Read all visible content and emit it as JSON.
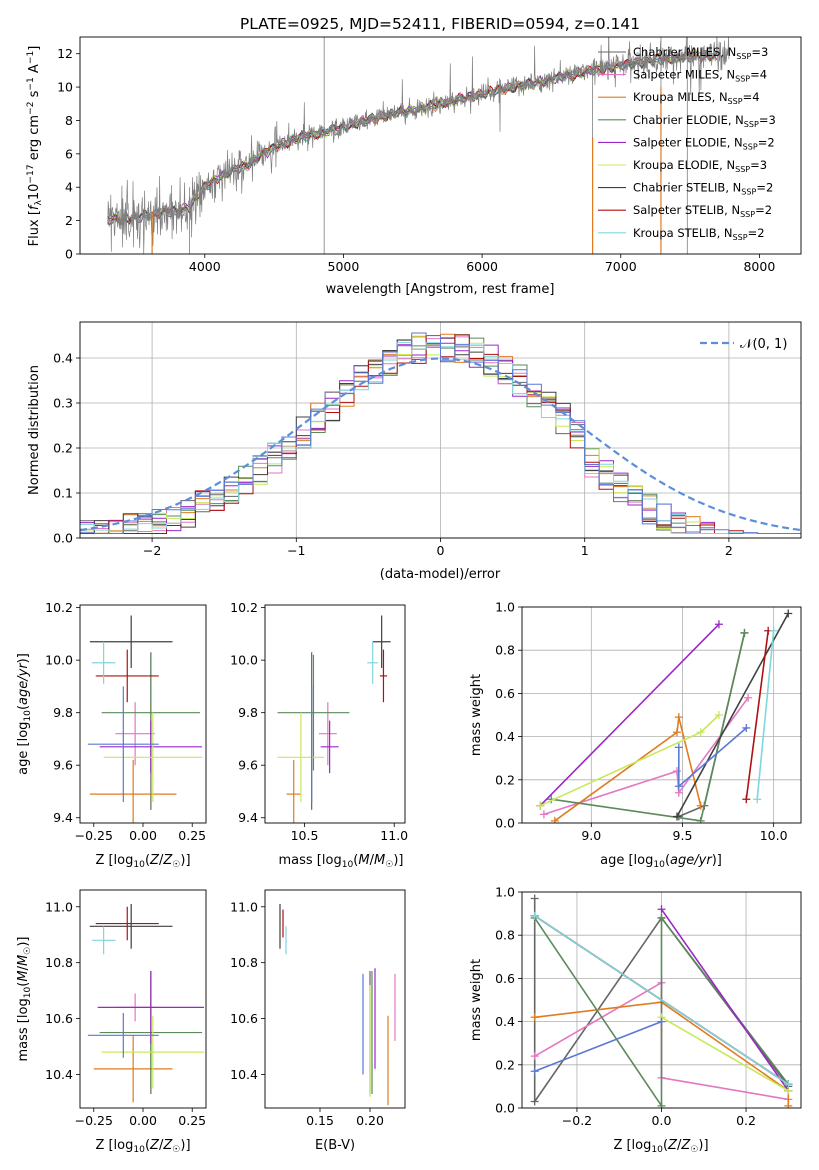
{
  "title": "PLATE=0925, MJD=52411, FIBERID=0594, z=0.141",
  "colors": {
    "Chabrier MILES": "#666666",
    "Salpeter MILES": "#e377c2",
    "Kroupa MILES": "#e07b20",
    "Chabrier ELODIE": "#5a8a5a",
    "Salpeter ELODIE": "#9b27c7",
    "Kroupa ELODIE": "#c8e85a",
    "Chabrier STELIB": "#404040",
    "Salpeter STELIB": "#b01010",
    "Kroupa STELIB": "#7fd6de",
    "blue": "#5a78d6",
    "normal": "#5b8fd9"
  },
  "legend1": [
    {
      "pre": "Chabrier MILES, N",
      "sub": "SSP",
      "post": "=3",
      "color": "#666666"
    },
    {
      "pre": "Salpeter MILES, N",
      "sub": "SSP",
      "post": "=4",
      "color": "#e377c2"
    },
    {
      "pre": "Kroupa MILES, N",
      "sub": "SSP",
      "post": "=4",
      "color": "#e07b20"
    },
    {
      "pre": "Chabrier ELODIE, N",
      "sub": "SSP",
      "post": "=3",
      "color": "#5a8a5a"
    },
    {
      "pre": "Salpeter ELODIE, N",
      "sub": "SSP",
      "post": "=2",
      "color": "#9b27c7"
    },
    {
      "pre": "Kroupa ELODIE, N",
      "sub": "SSP",
      "post": "=3",
      "color": "#c8e85a"
    },
    {
      "pre": "Chabrier STELIB, N",
      "sub": "SSP",
      "post": "=2",
      "color": "#404040"
    },
    {
      "pre": "Salpeter STELIB, N",
      "sub": "SSP",
      "post": "=2",
      "color": "#b01010"
    },
    {
      "pre": "Kroupa STELIB, N",
      "sub": "SSP",
      "post": "=2",
      "color": "#7fd6de"
    }
  ],
  "legend2": "𝒩(0, 1)",
  "chart_data": [
    {
      "type": "line",
      "title": "PLATE=0925, MJD=52411, FIBERID=0594, z=0.141",
      "xlabel": "wavelength [Angstrom, rest frame]",
      "ylabel": "Flux [fλ10⁻¹⁷ erg cm⁻² s⁻¹ A⁻¹]",
      "xlim": [
        3100,
        8300
      ],
      "ylim": [
        0,
        13
      ],
      "xticks": [
        4000,
        5000,
        6000,
        7000,
        8000
      ],
      "yticks": [
        0,
        2,
        4,
        6,
        8,
        10,
        12
      ],
      "continuum": {
        "x": [
          3300,
          3400,
          3500,
          3600,
          3700,
          3800,
          3900,
          4000,
          4100,
          4200,
          4300,
          4400,
          4500,
          4700,
          5000,
          5300,
          5600,
          6000,
          6400,
          6800,
          7200,
          7600,
          7700
        ],
        "y": [
          2.0,
          2.1,
          2.2,
          2.3,
          2.6,
          2.5,
          2.9,
          4.0,
          4.6,
          5.0,
          5.3,
          5.9,
          6.4,
          7.0,
          7.6,
          8.3,
          8.8,
          9.6,
          10.3,
          11.0,
          11.6,
          11.9,
          11.8
        ]
      }
    },
    {
      "type": "histogram",
      "xlabel": "(data-model)/error",
      "ylabel": "Normed distribution",
      "xlim": [
        -2.5,
        2.5
      ],
      "ylim": [
        0,
        0.48
      ],
      "xticks": [
        -2,
        -1,
        0,
        1,
        2
      ],
      "yticks": [
        0.0,
        0.1,
        0.2,
        0.3,
        0.4
      ],
      "reference": {
        "name": "𝒩(0, 1)",
        "mu": 0,
        "sigma": 1
      }
    },
    {
      "type": "scatter",
      "xlabel": "Z [log10(Z/Z☉)]",
      "ylabel": "age  [log10(age/yr)]",
      "xlim": [
        -0.32,
        0.32
      ],
      "ylim": [
        9.38,
        10.21
      ],
      "xticks": [
        -0.25,
        0.0,
        0.25
      ],
      "yticks": [
        9.4,
        9.6,
        9.8,
        10.0,
        10.2
      ],
      "points": [
        {
          "series": "Chabrier MILES",
          "x": 0.04,
          "y": 9.73,
          "xerr": 0.0,
          "yerr": 0.3
        },
        {
          "series": "Salpeter MILES",
          "x": -0.04,
          "y": 9.72,
          "xerr": 0.1,
          "yerr": 0.12
        },
        {
          "series": "Kroupa MILES",
          "x": -0.05,
          "y": 9.49,
          "xerr": 0.22,
          "yerr": 0.13
        },
        {
          "series": "Chabrier ELODIE",
          "x": 0.04,
          "y": 9.8,
          "xerr": 0.25,
          "yerr": 0.22
        },
        {
          "series": "Salpeter ELODIE",
          "x": 0.04,
          "y": 9.67,
          "xerr": 0.26,
          "yerr": 0.1
        },
        {
          "series": "Kroupa ELODIE",
          "x": 0.05,
          "y": 9.63,
          "xerr": 0.25,
          "yerr": 0.17
        },
        {
          "series": "Chabrier STELIB",
          "x": -0.06,
          "y": 10.07,
          "xerr": 0.21,
          "yerr": 0.1
        },
        {
          "series": "Salpeter STELIB",
          "x": -0.08,
          "y": 9.94,
          "xerr": 0.16,
          "yerr": 0.1
        },
        {
          "series": "Kroupa STELIB",
          "x": -0.2,
          "y": 9.99,
          "xerr": 0.06,
          "yerr": 0.08
        },
        {
          "series": "blue",
          "x": -0.1,
          "y": 9.68,
          "xerr": 0.18,
          "yerr": 0.22
        }
      ]
    },
    {
      "type": "scatter",
      "xlabel": "mass [log10(M/M☉)]",
      "ylabel": "",
      "xlim": [
        10.28,
        11.06
      ],
      "ylim": [
        9.38,
        10.21
      ],
      "xticks": [
        10.5,
        11.0
      ],
      "yticks": [
        9.4,
        9.6,
        9.8,
        10.0,
        10.2
      ],
      "points": [
        {
          "series": "Chabrier MILES",
          "x": 10.54,
          "y": 9.73,
          "xerr": 0.0,
          "yerr": 0.3
        },
        {
          "series": "Salpeter MILES",
          "x": 10.63,
          "y": 9.72,
          "xerr": 0.05,
          "yerr": 0.12
        },
        {
          "series": "Kroupa MILES",
          "x": 10.44,
          "y": 9.49,
          "xerr": 0.04,
          "yerr": 0.13
        },
        {
          "series": "Chabrier ELODIE",
          "x": 10.55,
          "y": 9.8,
          "xerr": 0.2,
          "yerr": 0.22
        },
        {
          "series": "Salpeter ELODIE",
          "x": 10.64,
          "y": 9.67,
          "xerr": 0.05,
          "yerr": 0.1
        },
        {
          "series": "Kroupa ELODIE",
          "x": 10.48,
          "y": 9.63,
          "xerr": 0.13,
          "yerr": 0.17
        },
        {
          "series": "Chabrier STELIB",
          "x": 10.93,
          "y": 10.07,
          "xerr": 0.05,
          "yerr": 0.1
        },
        {
          "series": "Salpeter STELIB",
          "x": 10.94,
          "y": 9.94,
          "xerr": 0.02,
          "yerr": 0.1
        },
        {
          "series": "Kroupa STELIB",
          "x": 10.88,
          "y": 9.99,
          "xerr": 0.03,
          "yerr": 0.08
        },
        {
          "series": "blue",
          "x": 10.54,
          "y": 9.68,
          "xerr": 0.0,
          "yerr": 0.22
        }
      ]
    },
    {
      "type": "line",
      "xlabel": "age  [log10(age/yr)]",
      "ylabel": "mass weight",
      "xlim": [
        8.62,
        10.15
      ],
      "ylim": [
        0,
        1.0
      ],
      "xticks": [
        9.0,
        9.5,
        10.0
      ],
      "yticks": [
        0.0,
        0.2,
        0.4,
        0.6,
        0.8,
        1.0
      ],
      "series": [
        {
          "name": "Chabrier MILES",
          "x": [
            9.48,
            9.62,
            9.84
          ],
          "y": [
            0.03,
            0.08,
            0.88
          ]
        },
        {
          "name": "Salpeter MILES",
          "x": [
            8.74,
            9.47,
            9.48,
            9.86
          ],
          "y": [
            0.04,
            0.24,
            0.14,
            0.58
          ]
        },
        {
          "name": "Kroupa MILES",
          "x": [
            8.8,
            9.47,
            9.48,
            9.6
          ],
          "y": [
            0.01,
            0.42,
            0.49,
            0.08
          ]
        },
        {
          "name": "Chabrier ELODIE",
          "x": [
            8.78,
            9.6,
            9.84
          ],
          "y": [
            0.11,
            0.01,
            0.88
          ]
        },
        {
          "name": "Salpeter ELODIE",
          "x": [
            8.72,
            9.7
          ],
          "y": [
            0.08,
            0.92
          ]
        },
        {
          "name": "Kroupa ELODIE",
          "x": [
            8.72,
            9.6,
            9.7
          ],
          "y": [
            0.08,
            0.42,
            0.5
          ]
        },
        {
          "name": "Chabrier STELIB",
          "x": [
            9.47,
            10.08
          ],
          "y": [
            0.03,
            0.97
          ]
        },
        {
          "name": "Salpeter STELIB",
          "x": [
            9.85,
            9.97
          ],
          "y": [
            0.11,
            0.89
          ]
        },
        {
          "name": "Kroupa STELIB",
          "x": [
            9.91,
            10.0
          ],
          "y": [
            0.11,
            0.89
          ]
        },
        {
          "name": "blue",
          "x": [
            9.48,
            9.48,
            9.85
          ],
          "y": [
            0.35,
            0.17,
            0.44
          ]
        }
      ]
    },
    {
      "type": "scatter",
      "xlabel": "Z [log10(Z/Z☉)]",
      "ylabel": "mass [log10(M/M☉)]",
      "xlim": [
        -0.32,
        0.32
      ],
      "ylim": [
        10.28,
        11.06
      ],
      "xticks": [
        -0.25,
        0.0,
        0.25
      ],
      "yticks": [
        10.4,
        10.6,
        10.8,
        11.0
      ],
      "points": [
        {
          "series": "Chabrier MILES",
          "x": 0.04,
          "y": 10.55,
          "xerr": 0.0,
          "yerr": 0.22
        },
        {
          "series": "Salpeter MILES",
          "x": -0.04,
          "y": 10.64,
          "xerr": 0.1,
          "yerr": 0.05
        },
        {
          "series": "Kroupa MILES",
          "x": -0.05,
          "y": 10.42,
          "xerr": 0.2,
          "yerr": 0.12
        },
        {
          "series": "Chabrier ELODIE",
          "x": 0.04,
          "y": 10.55,
          "xerr": 0.26,
          "yerr": 0.2
        },
        {
          "series": "Salpeter ELODIE",
          "x": 0.04,
          "y": 10.64,
          "xerr": 0.27,
          "yerr": 0.13
        },
        {
          "series": "Kroupa ELODIE",
          "x": 0.05,
          "y": 10.48,
          "xerr": 0.26,
          "yerr": 0.13
        },
        {
          "series": "Chabrier STELIB",
          "x": -0.06,
          "y": 10.93,
          "xerr": 0.21,
          "yerr": 0.08
        },
        {
          "series": "Salpeter STELIB",
          "x": -0.08,
          "y": 10.94,
          "xerr": 0.16,
          "yerr": 0.06
        },
        {
          "series": "Kroupa STELIB",
          "x": -0.2,
          "y": 10.88,
          "xerr": 0.06,
          "yerr": 0.05
        },
        {
          "series": "blue",
          "x": -0.1,
          "y": 10.54,
          "xerr": 0.18,
          "yerr": 0.08
        }
      ]
    },
    {
      "type": "scatter",
      "xlabel": "E(B-V)",
      "ylabel": "",
      "xlim": [
        0.095,
        0.235
      ],
      "ylim": [
        10.28,
        11.06
      ],
      "xticks": [
        0.15,
        0.2
      ],
      "yticks": [
        10.4,
        10.6,
        10.8,
        11.0
      ],
      "points": [
        {
          "series": "Chabrier MILES",
          "x": 0.2,
          "y": 10.55,
          "xerr": 0.0,
          "yerr": 0.22
        },
        {
          "series": "Salpeter MILES",
          "x": 0.225,
          "y": 10.64,
          "xerr": 0.0,
          "yerr": 0.12
        },
        {
          "series": "Kroupa MILES",
          "x": 0.218,
          "y": 10.45,
          "xerr": 0.0,
          "yerr": 0.16
        },
        {
          "series": "Chabrier ELODIE",
          "x": 0.202,
          "y": 10.55,
          "xerr": 0.0,
          "yerr": 0.22
        },
        {
          "series": "Salpeter ELODIE",
          "x": 0.205,
          "y": 10.6,
          "xerr": 0.0,
          "yerr": 0.18
        },
        {
          "series": "Kroupa ELODIE",
          "x": 0.2,
          "y": 10.52,
          "xerr": 0.0,
          "yerr": 0.2
        },
        {
          "series": "Chabrier STELIB",
          "x": 0.11,
          "y": 10.93,
          "xerr": 0.0,
          "yerr": 0.08
        },
        {
          "series": "Salpeter STELIB",
          "x": 0.113,
          "y": 10.94,
          "xerr": 0.0,
          "yerr": 0.05
        },
        {
          "series": "Kroupa STELIB",
          "x": 0.116,
          "y": 10.88,
          "xerr": 0.0,
          "yerr": 0.05
        },
        {
          "series": "blue",
          "x": 0.193,
          "y": 10.58,
          "xerr": 0.0,
          "yerr": 0.18
        }
      ]
    },
    {
      "type": "line",
      "xlabel": "Z [log10(Z/Z☉)]",
      "ylabel": "mass weight",
      "xlim": [
        -0.33,
        0.33
      ],
      "ylim": [
        0,
        1.0
      ],
      "xticks": [
        -0.2,
        0.0,
        0.2
      ],
      "yticks": [
        0.0,
        0.2,
        0.4,
        0.6,
        0.8,
        1.0
      ],
      "series": [
        {
          "name": "Chabrier MILES",
          "x": [
            -0.3,
            -0.3,
            0.0,
            0.3
          ],
          "y": [
            0.97,
            0.03,
            0.88,
            0.1
          ]
        },
        {
          "name": "Salpeter MILES",
          "x": [
            -0.3,
            0.0,
            0.0,
            0.3
          ],
          "y": [
            0.24,
            0.58,
            0.14,
            0.04
          ]
        },
        {
          "name": "Kroupa MILES",
          "x": [
            -0.3,
            0.0,
            0.3,
            0.3
          ],
          "y": [
            0.42,
            0.49,
            0.08,
            0.01
          ]
        },
        {
          "name": "Chabrier ELODIE",
          "x": [
            -0.3,
            0.0,
            0.0,
            0.3
          ],
          "y": [
            0.88,
            0.01,
            0.88,
            0.11
          ]
        },
        {
          "name": "Salpeter ELODIE",
          "x": [
            0.0,
            0.3
          ],
          "y": [
            0.92,
            0.08
          ]
        },
        {
          "name": "Kroupa ELODIE",
          "x": [
            0.0,
            0.3
          ],
          "y": [
            0.42,
            0.08
          ]
        },
        {
          "name": "Chabrier STELIB",
          "x": [
            -0.3,
            0.3
          ],
          "y": [
            0.89,
            0.11
          ]
        },
        {
          "name": "Salpeter STELIB",
          "x": [
            -0.3,
            0.3
          ],
          "y": [
            0.89,
            0.11
          ]
        },
        {
          "name": "Kroupa STELIB",
          "x": [
            -0.3,
            0.3
          ],
          "y": [
            0.89,
            0.11
          ]
        },
        {
          "name": "blue",
          "x": [
            -0.3,
            0.0
          ],
          "y": [
            0.17,
            0.4
          ]
        }
      ]
    }
  ]
}
